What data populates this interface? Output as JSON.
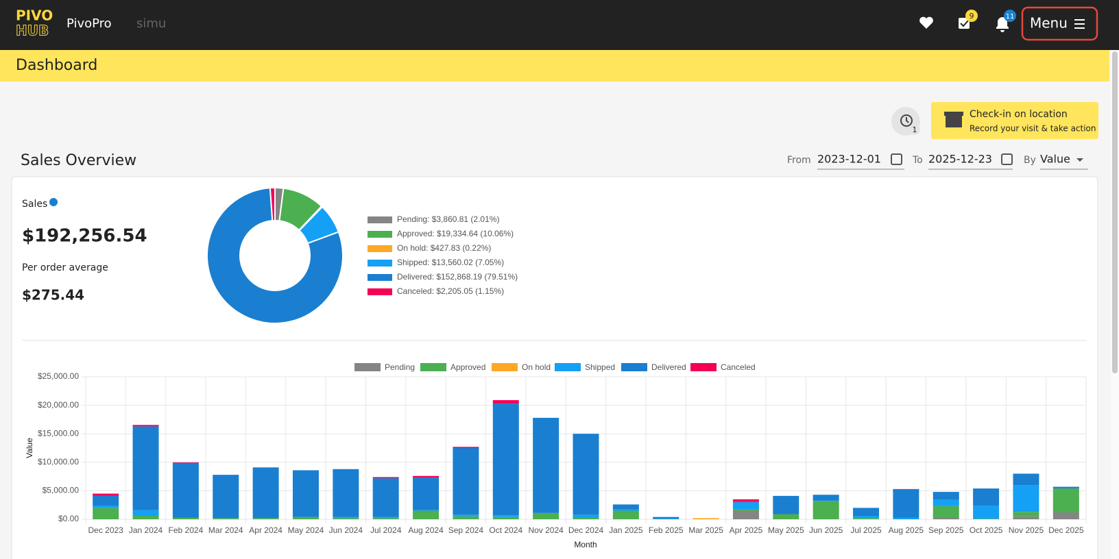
{
  "header": {
    "logo_top": "PIVO",
    "logo_bottom": "HUB",
    "brand": "PivoPro",
    "environment": "simu",
    "tasks_badge": "9",
    "notifications_badge": "11",
    "menu": "Menu"
  },
  "page_title": "Dashboard",
  "history_badge": "1",
  "checkin": {
    "title": "Check-in on location",
    "subtitle": "Record your visit & take action"
  },
  "section_title": "Sales Overview",
  "filters": {
    "from_label": "From",
    "from": "2023-12-01",
    "to_label": "To",
    "to": "2025-12-23",
    "by_label": "By",
    "by": "Value"
  },
  "summary": {
    "sales_label": "Sales",
    "sales": "$192,256.54",
    "average_label": "Per order average",
    "average": "$275.44"
  },
  "chart_data": [
    {
      "type": "pie",
      "categories": [
        "Pending: $3,860.81 (2.01%)",
        "Approved: $19,334.64 (10.06%)",
        "On hold: $427.83 (0.22%)",
        "Shipped: $13,560.02 (7.05%)",
        "Delivered: $152,868.19 (79.51%)",
        "Canceled: $2,205.05 (1.15%)"
      ],
      "values": [
        3860.81,
        19334.64,
        427.83,
        13560.02,
        152868.19,
        2205.05
      ],
      "colors": [
        "#858585",
        "#4caf50",
        "#ffa726",
        "#14a0f5",
        "#1a7fd0",
        "#f50057"
      ]
    },
    {
      "type": "bar",
      "stacked": true,
      "x_label": "Month",
      "y_label": "Value",
      "grid": true,
      "categories": [
        "Dec 2023",
        "Jan 2024",
        "Feb 2024",
        "Mar 2024",
        "Apr 2024",
        "May 2024",
        "Jun 2024",
        "Jul 2024",
        "Aug 2024",
        "Sep 2024",
        "Oct 2024",
        "Nov 2024",
        "Dec 2024",
        "Jan 2025",
        "Feb 2025",
        "Mar 2025",
        "Apr 2025",
        "May 2025",
        "Jun 2025",
        "Jul 2025",
        "Aug 2025",
        "Sep 2025",
        "Oct 2025",
        "Nov 2025",
        "Dec 2025"
      ],
      "ylim": [
        0,
        25000
      ],
      "yticks": [
        {
          "value": 0,
          "label": "$0.00"
        },
        {
          "value": 5000,
          "label": "$5,000.00"
        },
        {
          "value": 10000,
          "label": "$10,000.00"
        },
        {
          "value": 15000,
          "label": "$15,000.00"
        },
        {
          "value": 20000,
          "label": "$20,000.00"
        },
        {
          "value": 25000,
          "label": "$25,000.00"
        }
      ],
      "series": [
        {
          "name": "Pending",
          "color": "#858585",
          "values": [
            0,
            0,
            0,
            0,
            0,
            0,
            0,
            0,
            0,
            0,
            0,
            0,
            0,
            0,
            0,
            0,
            1500,
            0,
            0,
            0,
            0,
            300,
            0,
            500,
            1200
          ]
        },
        {
          "name": "Approved",
          "color": "#4caf50",
          "values": [
            2000,
            600,
            300,
            200,
            200,
            400,
            200,
            200,
            1500,
            500,
            400,
            1100,
            300,
            1500,
            0,
            0,
            200,
            900,
            3200,
            200,
            0,
            2000,
            100,
            800,
            4200
          ]
        },
        {
          "name": "On hold",
          "color": "#ffa726",
          "values": [
            0,
            0,
            0,
            0,
            0,
            0,
            0,
            0,
            0,
            0,
            0,
            0,
            0,
            0,
            0,
            200,
            0,
            0,
            0,
            0,
            0,
            0,
            0,
            0,
            0
          ]
        },
        {
          "name": "Shipped",
          "color": "#14a0f5",
          "values": [
            400,
            1000,
            0,
            0,
            0,
            0,
            200,
            200,
            100,
            300,
            300,
            0,
            500,
            200,
            100,
            0,
            1200,
            0,
            100,
            400,
            300,
            1100,
            2300,
            4700,
            0
          ]
        },
        {
          "name": "Delivered",
          "color": "#1a7fd0",
          "values": [
            1700,
            14700,
            9600,
            7600,
            8900,
            8200,
            8400,
            6800,
            5700,
            11700,
            19600,
            16700,
            14200,
            900,
            300,
            0,
            200,
            3200,
            1000,
            1400,
            4900,
            1400,
            3000,
            2000,
            300
          ]
        },
        {
          "name": "Canceled",
          "color": "#f50057",
          "values": [
            400,
            250,
            100,
            0,
            0,
            0,
            0,
            200,
            300,
            200,
            600,
            0,
            0,
            0,
            0,
            0,
            400,
            0,
            0,
            0,
            100,
            0,
            0,
            0,
            0
          ]
        }
      ]
    }
  ]
}
